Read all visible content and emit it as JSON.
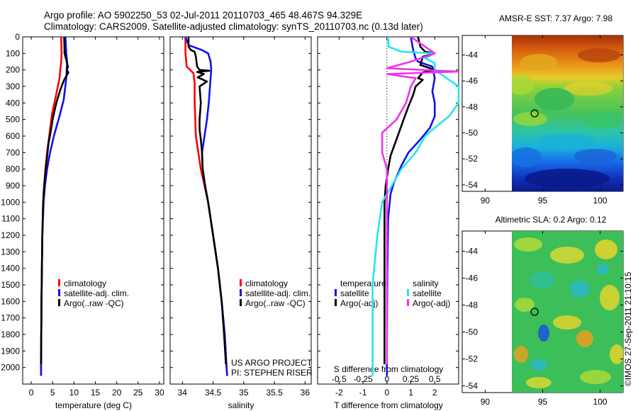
{
  "title_line1": "Argo profile: AO 5902250_53 02-Jul-2011 20110703_465 48.467S 94.329E",
  "title_line2": "Climatology: CARS2009. Satellite-adjusted climatology: synTS_20110703.nc (0.13d later)",
  "credits": {
    "project": "US ARGO PROJECT",
    "pi": "PI: STEPHEN RISER"
  },
  "watermark": "©IMOS 27-Sep-2011 21:10:15",
  "colors": {
    "red": "#ff0000",
    "blue": "#1010ee",
    "black": "#000000",
    "cyan": "#22e6ee",
    "magenta": "#ee33ee"
  },
  "chart_data": [
    {
      "type": "line",
      "id": "temperature",
      "xlabel": "temperature (deg C)",
      "xlim": [
        -2,
        31
      ],
      "ylim": [
        2100,
        0
      ],
      "xticks": [
        "0",
        "5",
        "10",
        "15",
        "20",
        "25",
        "30"
      ],
      "yticks": [
        "0",
        "100",
        "200",
        "300",
        "400",
        "500",
        "600",
        "700",
        "800",
        "900",
        "1000",
        "1100",
        "1200",
        "1300",
        "1400",
        "1500",
        "1600",
        "1700",
        "1800",
        "1900",
        "2000"
      ],
      "legend": [
        "climatology",
        "satellite-adj. clim.",
        "Argo(..raw -QC)"
      ],
      "series": [
        {
          "name": "climatology",
          "color": "red",
          "points": [
            [
              7.0,
              0
            ],
            [
              7.1,
              100
            ],
            [
              7.0,
              150
            ],
            [
              6.6,
              250
            ],
            [
              5.6,
              380
            ],
            [
              4.9,
              460
            ],
            [
              4.2,
              600
            ],
            [
              3.7,
              700
            ],
            [
              3.3,
              800
            ],
            [
              3.0,
              900
            ],
            [
              2.8,
              1000
            ],
            [
              2.6,
              1200
            ],
            [
              2.5,
              1400
            ],
            [
              2.4,
              1600
            ],
            [
              2.35,
              1800
            ],
            [
              2.3,
              2000
            ],
            [
              2.3,
              2050
            ]
          ]
        },
        {
          "name": "satellite-adj. clim.",
          "color": "blue",
          "points": [
            [
              8.0,
              0
            ],
            [
              8.2,
              100
            ],
            [
              8.4,
              150
            ],
            [
              8.2,
              250
            ],
            [
              7.6,
              380
            ],
            [
              6.6,
              480
            ],
            [
              5.3,
              600
            ],
            [
              4.4,
              700
            ],
            [
              3.7,
              800
            ],
            [
              3.2,
              900
            ],
            [
              2.9,
              1000
            ],
            [
              2.6,
              1200
            ],
            [
              2.5,
              1400
            ],
            [
              2.4,
              1600
            ],
            [
              2.35,
              1800
            ],
            [
              2.3,
              2000
            ],
            [
              2.3,
              2050
            ]
          ]
        },
        {
          "name": "Argo(..raw -QC)",
          "color": "black",
          "points": [
            [
              7.7,
              0
            ],
            [
              7.8,
              100
            ],
            [
              8.6,
              180
            ],
            [
              8.3,
              200
            ],
            [
              8.7,
              215
            ],
            [
              7.7,
              260
            ],
            [
              6.8,
              320
            ],
            [
              6.1,
              380
            ],
            [
              5.6,
              430
            ],
            [
              5.0,
              500
            ],
            [
              4.5,
              580
            ],
            [
              4.0,
              650
            ],
            [
              3.6,
              750
            ],
            [
              3.2,
              850
            ],
            [
              2.9,
              950
            ],
            [
              2.8,
              1000
            ],
            [
              2.6,
              1200
            ],
            [
              2.5,
              1400
            ],
            [
              2.4,
              1600
            ],
            [
              2.35,
              1800
            ],
            [
              2.3,
              1980
            ]
          ]
        }
      ]
    },
    {
      "type": "line",
      "id": "salinity",
      "xlabel": "salinity",
      "xlim": [
        33.8,
        36.1
      ],
      "ylim": [
        2100,
        0
      ],
      "xticks": [
        "34",
        "34.5",
        "35",
        "35.5",
        "36"
      ],
      "legend": [
        "climatology",
        "satellite-adj. clim.",
        "Argo(..raw -QC)"
      ],
      "series": [
        {
          "name": "climatology",
          "color": "red",
          "points": [
            [
              34.05,
              0
            ],
            [
              34.05,
              100
            ],
            [
              34.07,
              180
            ],
            [
              34.18,
              220
            ],
            [
              34.2,
              280
            ],
            [
              34.2,
              400
            ],
            [
              34.21,
              500
            ],
            [
              34.22,
              600
            ],
            [
              34.26,
              700
            ],
            [
              34.3,
              800
            ],
            [
              34.36,
              900
            ],
            [
              34.42,
              1000
            ],
            [
              34.5,
              1200
            ],
            [
              34.58,
              1400
            ],
            [
              34.64,
              1600
            ],
            [
              34.69,
              1800
            ],
            [
              34.72,
              2000
            ],
            [
              34.73,
              2050
            ]
          ]
        },
        {
          "name": "satellite-adj. clim.",
          "color": "blue",
          "points": [
            [
              34.05,
              0
            ],
            [
              34.1,
              50
            ],
            [
              34.32,
              80
            ],
            [
              34.42,
              100
            ],
            [
              34.46,
              150
            ],
            [
              34.47,
              200
            ],
            [
              34.45,
              300
            ],
            [
              34.43,
              400
            ],
            [
              34.4,
              500
            ],
            [
              34.36,
              600
            ],
            [
              34.32,
              700
            ],
            [
              34.33,
              800
            ],
            [
              34.37,
              900
            ],
            [
              34.42,
              1000
            ],
            [
              34.5,
              1200
            ],
            [
              34.58,
              1400
            ],
            [
              34.64,
              1600
            ],
            [
              34.69,
              1800
            ],
            [
              34.72,
              2000
            ],
            [
              34.73,
              2050
            ]
          ]
        },
        {
          "name": "Argo(..raw -QC)",
          "color": "black",
          "points": [
            [
              34.1,
              0
            ],
            [
              34.1,
              60
            ],
            [
              34.14,
              80
            ],
            [
              34.2,
              90
            ],
            [
              34.22,
              120
            ],
            [
              34.24,
              180
            ],
            [
              34.28,
              200
            ],
            [
              34.44,
              205
            ],
            [
              34.24,
              212
            ],
            [
              34.35,
              225
            ],
            [
              34.25,
              245
            ],
            [
              34.4,
              270
            ],
            [
              34.28,
              300
            ],
            [
              34.3,
              400
            ],
            [
              34.28,
              500
            ],
            [
              34.28,
              560
            ],
            [
              34.3,
              620
            ],
            [
              34.32,
              700
            ],
            [
              34.33,
              800
            ],
            [
              34.37,
              900
            ],
            [
              34.42,
              1000
            ],
            [
              34.5,
              1200
            ],
            [
              34.58,
              1400
            ],
            [
              34.64,
              1600
            ],
            [
              34.68,
              1800
            ],
            [
              34.71,
              1980
            ]
          ]
        }
      ]
    },
    {
      "type": "line",
      "id": "difference",
      "xlabel": "T difference from climatology",
      "xlabel2": "S difference from climatology",
      "xlim": [
        -2.9,
        3.0
      ],
      "ylim": [
        2100,
        0
      ],
      "xticks": [
        "-2",
        "-1",
        "0",
        "1",
        "2"
      ],
      "xticks2": [
        "-0.5",
        "-0.25",
        "0",
        "0.25",
        "0.5"
      ],
      "legend_title_t": "temperature",
      "legend_title_s": "salinity",
      "legend_t": [
        "satellite",
        "Argo(-adj)"
      ],
      "legend_s": [
        "satellite",
        "Argo(-adj)"
      ],
      "series": [
        {
          "name": "temperature satellite",
          "color": "blue",
          "points": [
            [
              1.0,
              0
            ],
            [
              1.1,
              80
            ],
            [
              1.2,
              130
            ],
            [
              1.3,
              150
            ],
            [
              1.9,
              180
            ],
            [
              2.0,
              250
            ],
            [
              1.9,
              330
            ],
            [
              2.0,
              400
            ],
            [
              2.0,
              480
            ],
            [
              1.8,
              550
            ],
            [
              1.4,
              620
            ],
            [
              0.9,
              700
            ],
            [
              0.6,
              780
            ],
            [
              0.3,
              880
            ],
            [
              0.15,
              950
            ],
            [
              0.05,
              1100
            ],
            [
              0.02,
              1400
            ],
            [
              0.0,
              1800
            ],
            [
              0.0,
              2000
            ],
            [
              0.0,
              2050
            ]
          ]
        },
        {
          "name": "temperature Argo(-adj)",
          "color": "black",
          "points": [
            [
              1.3,
              0
            ],
            [
              1.4,
              60
            ],
            [
              1.6,
              90
            ],
            [
              2.0,
              100
            ],
            [
              1.5,
              120
            ],
            [
              1.4,
              170
            ],
            [
              2.0,
              200
            ],
            [
              1.5,
              215
            ],
            [
              1.3,
              250
            ],
            [
              1.5,
              260
            ],
            [
              1.2,
              300
            ],
            [
              1.1,
              350
            ],
            [
              0.9,
              420
            ],
            [
              0.7,
              500
            ],
            [
              0.5,
              580
            ],
            [
              0.3,
              660
            ],
            [
              0.15,
              720
            ],
            [
              0.05,
              800
            ],
            [
              -0.05,
              900
            ],
            [
              -0.1,
              1000
            ],
            [
              -0.1,
              1200
            ],
            [
              -0.1,
              1600
            ],
            [
              -0.1,
              1800
            ],
            [
              -0.1,
              1980
            ]
          ]
        },
        {
          "name": "salinity satellite",
          "color": "cyan",
          "points": [
            [
              0.01,
              0
            ],
            [
              0.02,
              60
            ],
            [
              0.15,
              90
            ],
            [
              0.5,
              100
            ],
            [
              0.4,
              130
            ],
            [
              0.5,
              160
            ],
            [
              0.5,
              200
            ],
            [
              0.75,
              300
            ],
            [
              0.75,
              400
            ],
            [
              0.65,
              480
            ],
            [
              0.5,
              550
            ],
            [
              0.4,
              600
            ],
            [
              0.35,
              650
            ],
            [
              0.3,
              700
            ],
            [
              0.15,
              800
            ],
            [
              0.05,
              900
            ],
            [
              -0.05,
              1000
            ],
            [
              -0.1,
              1200
            ],
            [
              -0.15,
              1500
            ],
            [
              -0.15,
              1800
            ],
            [
              -0.15,
              2050
            ]
          ]
        },
        {
          "name": "salinity Argo(-adj)",
          "color": "magenta",
          "points": [
            [
              0.25,
              0
            ],
            [
              0.35,
              40
            ],
            [
              0.5,
              100
            ],
            [
              0.25,
              150
            ],
            [
              0.0,
              190
            ],
            [
              0.75,
              210
            ],
            [
              0.0,
              225
            ],
            [
              0.3,
              250
            ],
            [
              0.25,
              300
            ],
            [
              0.2,
              400
            ],
            [
              0.1,
              500
            ],
            [
              -0.05,
              580
            ],
            [
              -0.05,
              700
            ],
            [
              0.0,
              800
            ],
            [
              0.0,
              900
            ],
            [
              0.0,
              1000
            ],
            [
              0.0,
              1200
            ],
            [
              0.0,
              1500
            ],
            [
              0.0,
              1800
            ],
            [
              0.0,
              1980
            ]
          ]
        }
      ]
    },
    {
      "type": "heatmap",
      "id": "sst_map",
      "title": "AMSR-E SST: 7.37 Argo: 7.98",
      "xlim": [
        88,
        102
      ],
      "ylim": [
        -54.5,
        -42.5
      ],
      "xticks": [
        "90",
        "95",
        "100"
      ],
      "yticks": [
        "-44",
        "-46",
        "-48",
        "-50",
        "-52",
        "-54"
      ],
      "data_xlim": [
        90,
        102
      ],
      "marker": {
        "lon": 94.3,
        "lat": -48.5
      }
    },
    {
      "type": "heatmap",
      "id": "sla_map",
      "title": "Altimetric SLA: 0.2 Argo: 0.12",
      "xlim": [
        88,
        102
      ],
      "ylim": [
        -54.5,
        -42.5
      ],
      "xticks": [
        "90",
        "95",
        "100"
      ],
      "yticks": [
        "-44",
        "-46",
        "-48",
        "-50",
        "-52",
        "-54"
      ],
      "data_xlim": [
        90,
        102
      ],
      "marker": {
        "lon": 94.3,
        "lat": -48.5
      }
    }
  ]
}
